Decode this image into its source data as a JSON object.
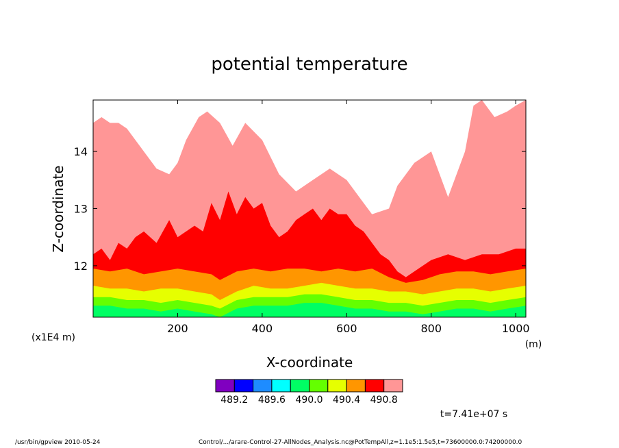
{
  "chart_data": {
    "type": "heatmap",
    "title": "potential temperature",
    "xlabel": "X-coordinate",
    "ylabel": "Z-coordinate",
    "x_unit": "(m)",
    "y_scale_label": "(x1E4 m)",
    "xlim": [
      0,
      1024
    ],
    "ylim": [
      11.1,
      14.9
    ],
    "x_ticks": [
      200,
      400,
      600,
      800,
      1000
    ],
    "y_ticks": [
      12,
      13,
      14
    ],
    "contour_levels": [
      489.2,
      489.4,
      489.6,
      489.8,
      490.0,
      490.2,
      490.4,
      490.6,
      490.8
    ],
    "colorbar_labels": [
      "489.2",
      "489.6",
      "490.0",
      "490.4",
      "490.8"
    ],
    "colors": [
      "#8000c0",
      "#0000ff",
      "#1e8cff",
      "#00ffff",
      "#00ff64",
      "#64ff00",
      "#e6ff00",
      "#ff9600",
      "#ff0000",
      "#ff9696"
    ],
    "time_label": "t=7.41e+07 s",
    "boundaries": [
      {
        "name": "top of 490.8+ (pink) region",
        "x": [
          0,
          20,
          40,
          60,
          80,
          100,
          120,
          150,
          180,
          200,
          220,
          250,
          270,
          300,
          330,
          360,
          400,
          440,
          480,
          520,
          560,
          600,
          640,
          660,
          700,
          720,
          760,
          800,
          840,
          860,
          880,
          900,
          920,
          950,
          980,
          1000,
          1024
        ],
        "z": [
          14.5,
          14.6,
          14.5,
          14.5,
          14.4,
          14.2,
          14.0,
          13.7,
          13.6,
          13.8,
          14.2,
          14.6,
          14.7,
          14.5,
          14.1,
          14.5,
          14.2,
          13.6,
          13.3,
          13.5,
          13.7,
          13.5,
          13.1,
          12.9,
          13.0,
          13.4,
          13.8,
          14.0,
          13.2,
          13.6,
          14.0,
          14.8,
          14.9,
          14.6,
          14.7,
          14.8,
          14.9
        ]
      },
      {
        "name": "top of 490.6-490.8 (red) region",
        "x": [
          0,
          20,
          40,
          60,
          80,
          100,
          120,
          150,
          180,
          200,
          240,
          260,
          280,
          300,
          320,
          340,
          360,
          380,
          400,
          420,
          440,
          460,
          480,
          500,
          520,
          540,
          560,
          580,
          600,
          620,
          640,
          660,
          680,
          700,
          720,
          740,
          760,
          800,
          840,
          880,
          920,
          960,
          1000,
          1024
        ],
        "z": [
          12.2,
          12.3,
          12.1,
          12.4,
          12.3,
          12.5,
          12.6,
          12.4,
          12.8,
          12.5,
          12.7,
          12.6,
          13.1,
          12.8,
          13.3,
          12.9,
          13.2,
          13.0,
          13.1,
          12.7,
          12.5,
          12.6,
          12.8,
          12.9,
          13.0,
          12.8,
          13.0,
          12.9,
          12.9,
          12.7,
          12.6,
          12.4,
          12.2,
          12.1,
          11.9,
          11.8,
          11.9,
          12.1,
          12.2,
          12.1,
          12.2,
          12.2,
          12.3,
          12.3
        ]
      },
      {
        "name": "top of 490.4-490.6 (orange) region",
        "x": [
          0,
          40,
          80,
          120,
          160,
          200,
          240,
          280,
          300,
          340,
          380,
          420,
          460,
          500,
          540,
          580,
          620,
          660,
          700,
          740,
          780,
          820,
          860,
          900,
          940,
          980,
          1024
        ],
        "z": [
          11.95,
          11.9,
          11.95,
          11.85,
          11.9,
          11.95,
          11.9,
          11.85,
          11.75,
          11.9,
          11.95,
          11.9,
          11.95,
          11.95,
          11.9,
          11.95,
          11.9,
          11.95,
          11.8,
          11.7,
          11.75,
          11.85,
          11.9,
          11.9,
          11.85,
          11.9,
          11.95
        ]
      },
      {
        "name": "top of 490.2-490.4 (yellow) region",
        "x": [
          0,
          40,
          80,
          120,
          160,
          200,
          240,
          280,
          300,
          340,
          380,
          420,
          460,
          500,
          540,
          580,
          620,
          660,
          700,
          740,
          780,
          820,
          860,
          900,
          940,
          980,
          1024
        ],
        "z": [
          11.65,
          11.6,
          11.6,
          11.55,
          11.6,
          11.6,
          11.55,
          11.5,
          11.4,
          11.55,
          11.65,
          11.6,
          11.6,
          11.65,
          11.7,
          11.65,
          11.6,
          11.6,
          11.55,
          11.55,
          11.5,
          11.55,
          11.6,
          11.6,
          11.55,
          11.6,
          11.65
        ]
      },
      {
        "name": "top of 490.0-490.2 (light green) region",
        "x": [
          0,
          40,
          80,
          120,
          160,
          200,
          240,
          280,
          300,
          340,
          380,
          420,
          460,
          500,
          540,
          580,
          620,
          660,
          700,
          740,
          780,
          820,
          860,
          900,
          940,
          980,
          1024
        ],
        "z": [
          11.45,
          11.45,
          11.4,
          11.4,
          11.35,
          11.4,
          11.35,
          11.3,
          11.25,
          11.4,
          11.45,
          11.45,
          11.45,
          11.5,
          11.5,
          11.45,
          11.4,
          11.4,
          11.35,
          11.35,
          11.3,
          11.35,
          11.4,
          11.4,
          11.35,
          11.4,
          11.45
        ]
      },
      {
        "name": "top of 489.8-490.0 (green) region",
        "x": [
          0,
          40,
          80,
          120,
          160,
          200,
          240,
          280,
          300,
          340,
          380,
          420,
          460,
          500,
          540,
          580,
          620,
          660,
          700,
          740,
          780,
          820,
          860,
          900,
          940,
          980,
          1024
        ],
        "z": [
          11.3,
          11.3,
          11.25,
          11.25,
          11.2,
          11.25,
          11.2,
          11.15,
          11.1,
          11.25,
          11.3,
          11.3,
          11.3,
          11.35,
          11.35,
          11.3,
          11.25,
          11.25,
          11.2,
          11.2,
          11.15,
          11.2,
          11.25,
          11.25,
          11.2,
          11.25,
          11.3
        ]
      }
    ]
  },
  "footer": {
    "left": "/usr/bin/gpview   2010-05-24",
    "right": "Control/.../arare-Control-27-AllNodes_Analysis.nc@PotTempAll,z=1.1e5:1.5e5,t=73600000.0:74200000.0"
  }
}
